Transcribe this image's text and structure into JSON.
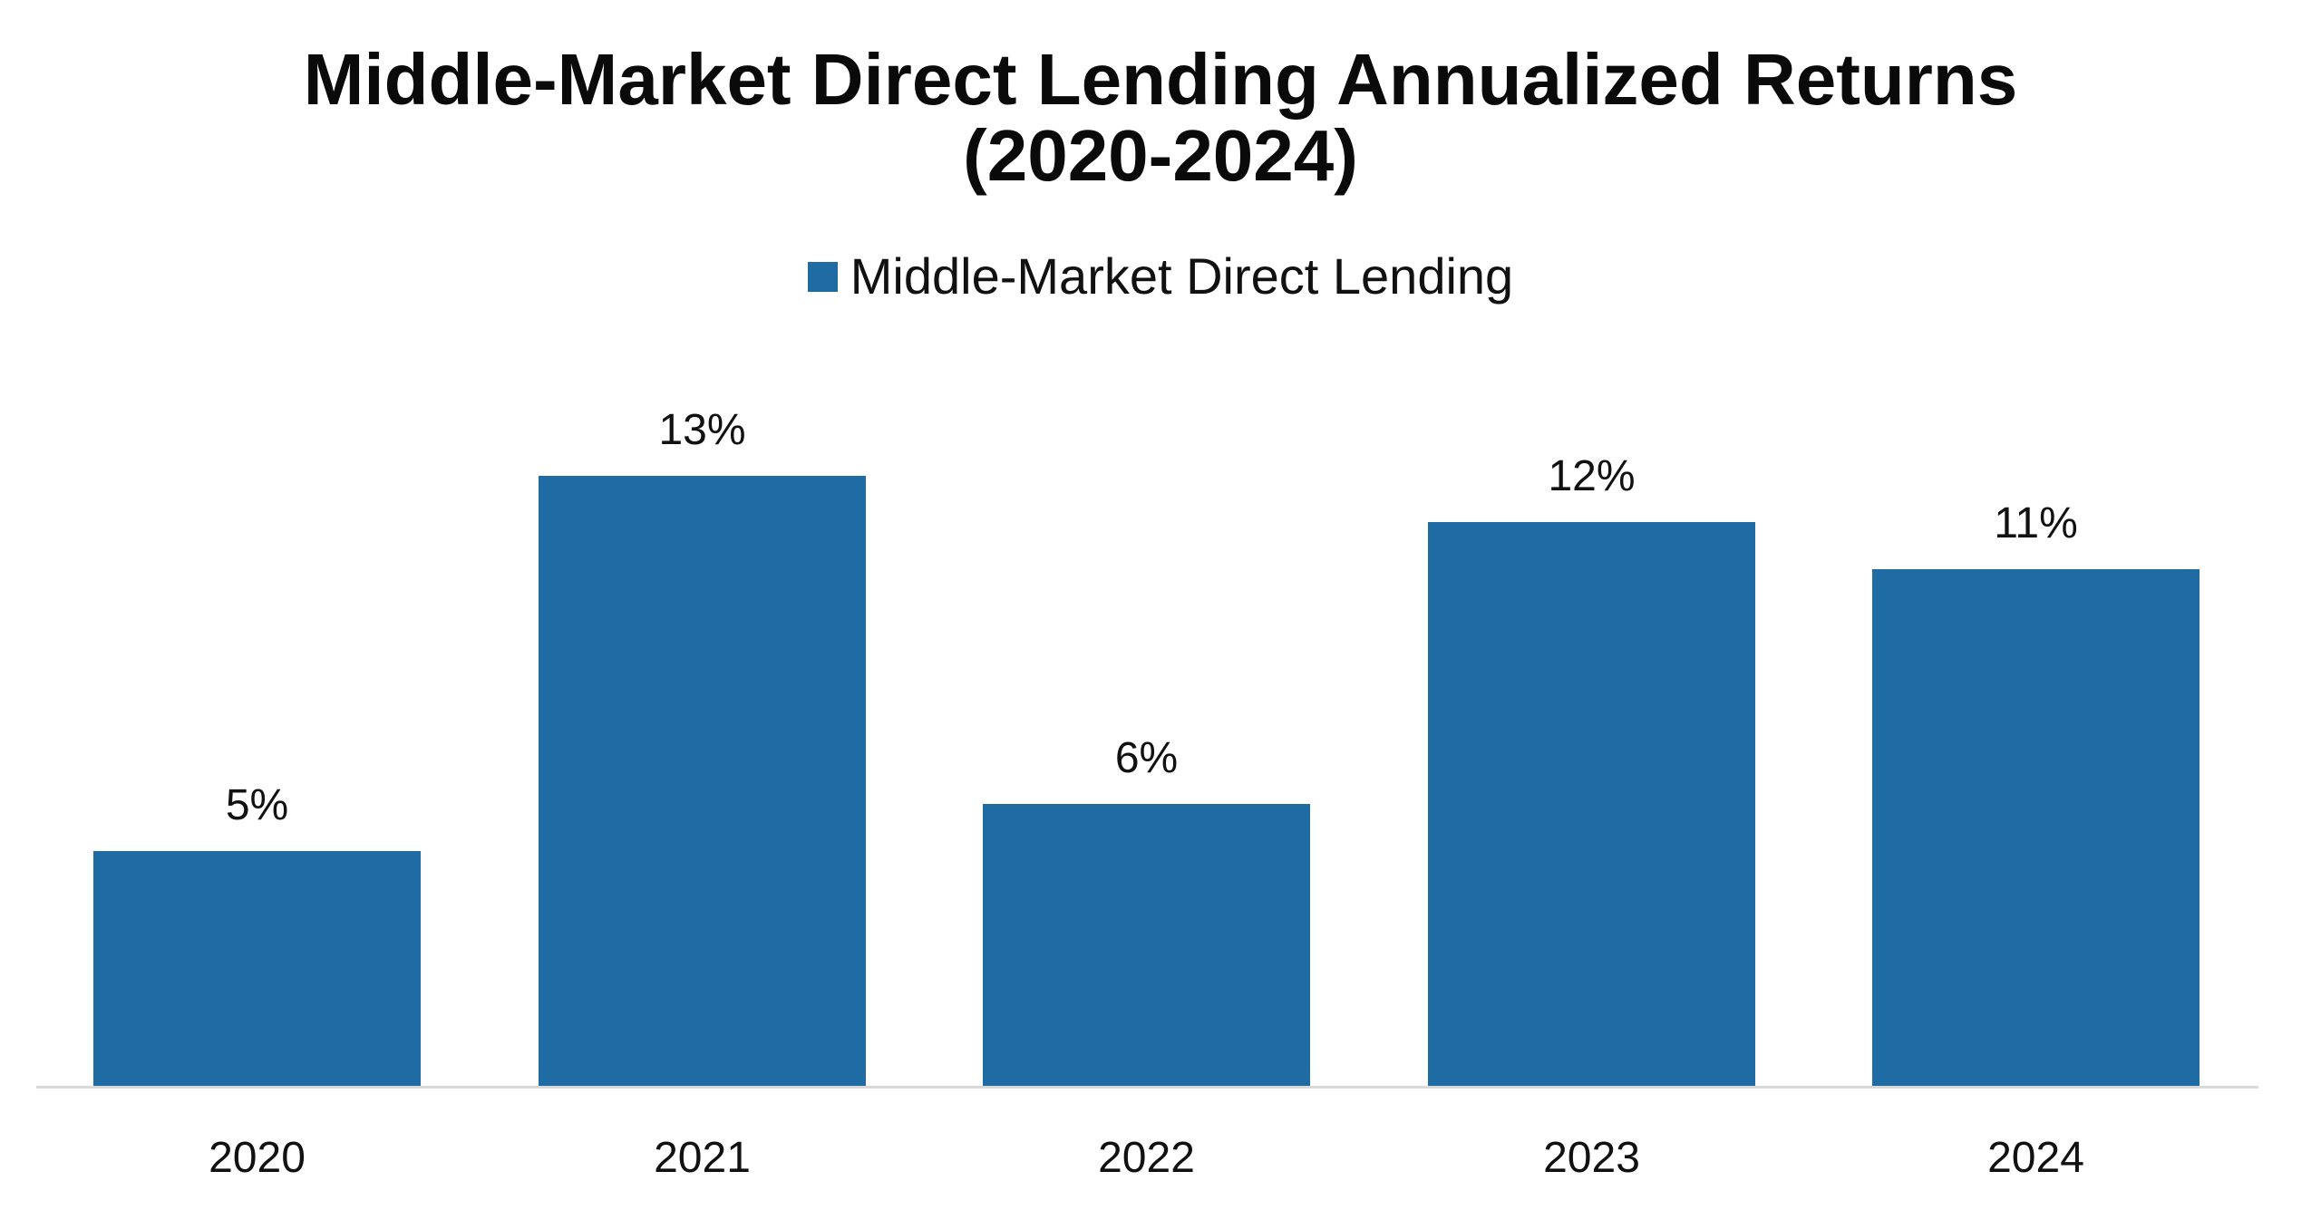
{
  "chart_data": {
    "type": "bar",
    "title": "Middle-Market Direct Lending Annualized Returns (2020-2024)",
    "title_lines": [
      "Middle-Market Direct Lending Annualized Returns",
      "(2020-2024)"
    ],
    "categories": [
      "2020",
      "2021",
      "2022",
      "2023",
      "2024"
    ],
    "series": [
      {
        "name": "Middle-Market Direct Lending",
        "values": [
          5,
          13,
          6,
          12,
          11
        ],
        "labels": [
          "5%",
          "13%",
          "6%",
          "12%",
          "11%"
        ],
        "color": "#1f6ca4"
      }
    ],
    "xlabel": "",
    "ylabel": "",
    "ylim": [
      0,
      14
    ],
    "grid": false,
    "y_axis_visible": false,
    "legend_position": "top",
    "data_labels": true
  },
  "legend": {
    "items": [
      {
        "label": "Middle-Market Direct Lending",
        "color": "#1f6ca4"
      }
    ]
  },
  "colors": {
    "bar": "#1f6ca4",
    "axis": "#d9d9d9",
    "text": "#111111",
    "background": "#ffffff"
  }
}
